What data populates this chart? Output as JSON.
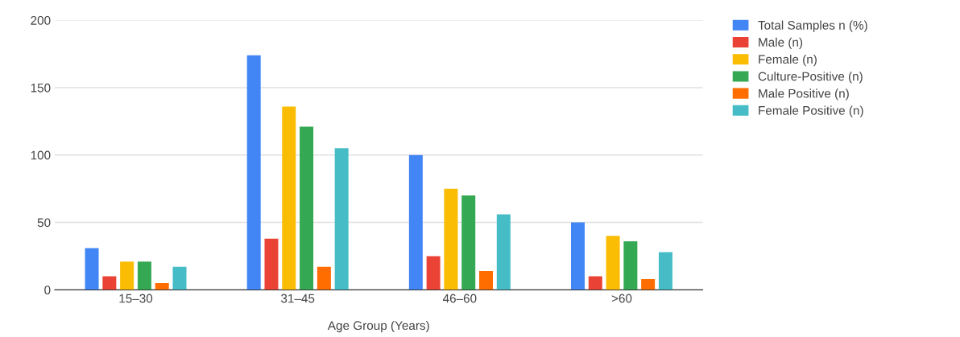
{
  "chart_data": {
    "type": "bar",
    "xlabel": "Age Group (Years)",
    "categories": [
      "15–30",
      "31–45",
      "46–60",
      ">60"
    ],
    "series": [
      {
        "name": "Total Samples n (%)",
        "color": "#4285f4",
        "values": [
          31,
          174,
          100,
          50
        ]
      },
      {
        "name": "Male (n)",
        "color": "#ea4335",
        "values": [
          10,
          38,
          25,
          10
        ]
      },
      {
        "name": "Female (n)",
        "color": "#fbbc04",
        "values": [
          21,
          136,
          75,
          40
        ]
      },
      {
        "name": "Culture-Positive (n)",
        "color": "#34a853",
        "values": [
          21,
          121,
          70,
          36
        ]
      },
      {
        "name": "Male Positive (n)",
        "color": "#ff6d01",
        "values": [
          5,
          17,
          14,
          8
        ]
      },
      {
        "name": "Female Positive (n)",
        "color": "#46bdc6",
        "values": [
          17,
          105,
          56,
          28
        ]
      }
    ],
    "ylim": [
      0,
      200
    ],
    "yticks": [
      0,
      50,
      100,
      150,
      200
    ],
    "grid": "y",
    "legend": "top right"
  }
}
